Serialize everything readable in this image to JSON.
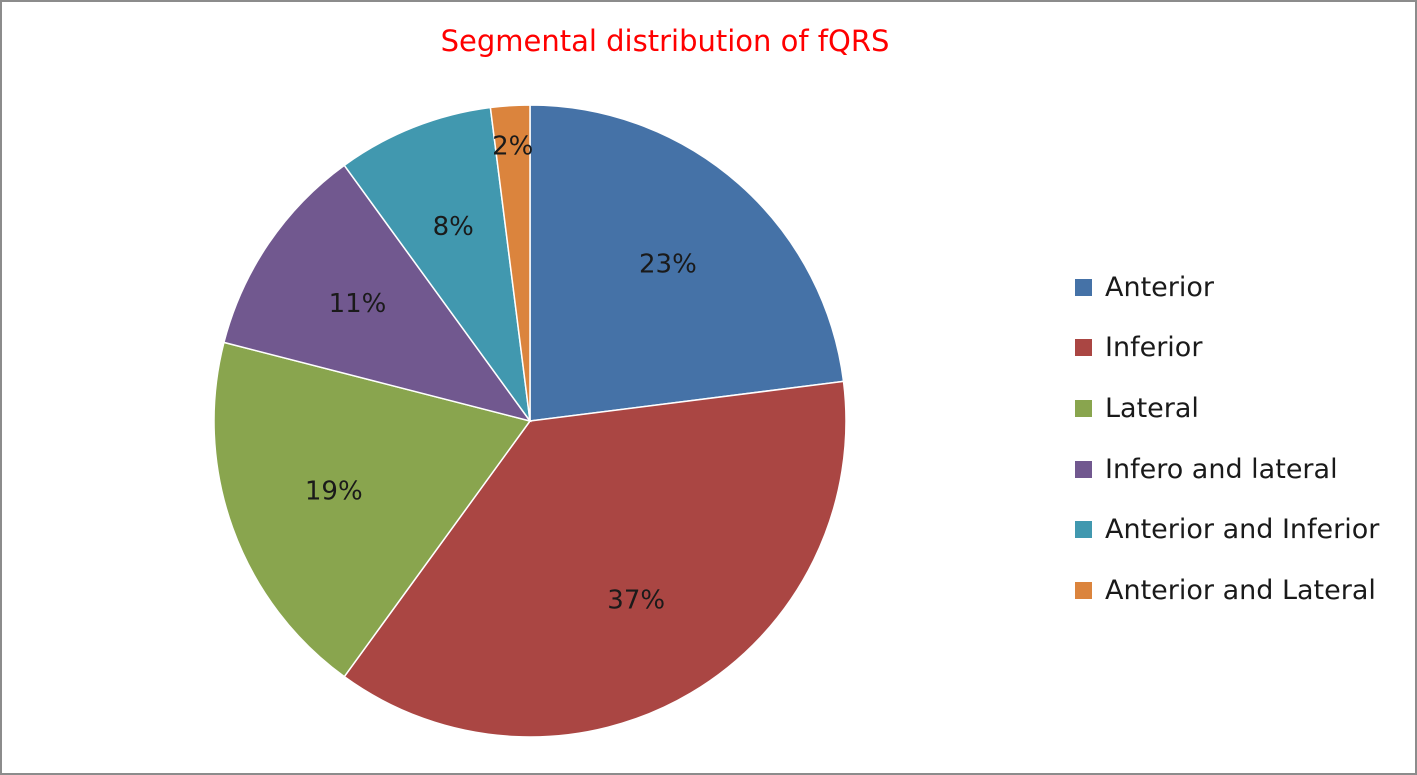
{
  "chart_data": {
    "type": "pie",
    "title": "Segmental distribution of fQRS",
    "legend_position": "right",
    "start_angle": "12 o'clock",
    "direction": "clockwise",
    "slices": [
      {
        "label": "Anterior",
        "value": 23,
        "value_label": "23%",
        "color": "#4572a7"
      },
      {
        "label": "Inferior",
        "value": 37,
        "value_label": "37%",
        "color": "#aa4643"
      },
      {
        "label": "Lateral",
        "value": 19,
        "value_label": "19%",
        "color": "#89a54e"
      },
      {
        "label": "Infero and lateral",
        "value": 11,
        "value_label": "11%",
        "color": "#71588f"
      },
      {
        "label": "Anterior and Inferior",
        "value": 8,
        "value_label": "8%",
        "color": "#4198af"
      },
      {
        "label": "Anterior and Lateral",
        "value": 2,
        "value_label": "2%",
        "color": "#db843d"
      }
    ]
  }
}
